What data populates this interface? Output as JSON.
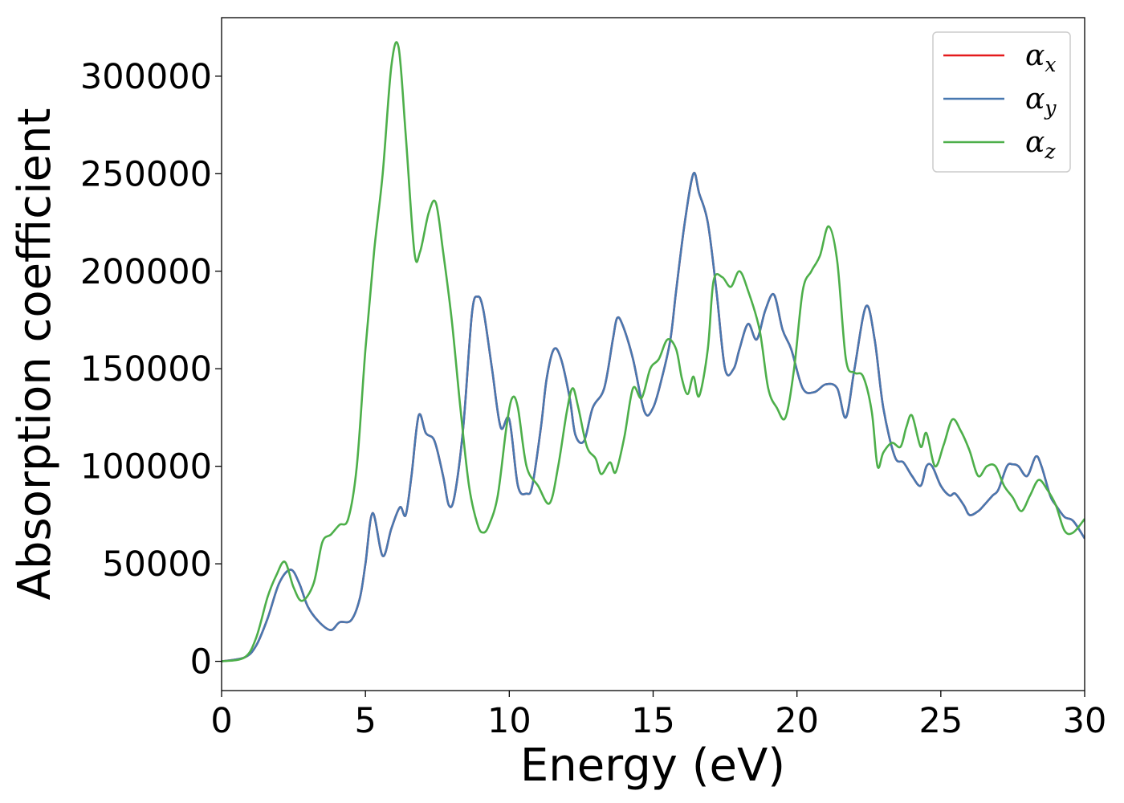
{
  "chart_data": {
    "type": "line",
    "xlabel": "Energy (eV)",
    "ylabel": "Absorption coefficient",
    "xlim": [
      0,
      30
    ],
    "ylim": [
      -15000,
      330000
    ],
    "xticks": [
      0,
      5,
      10,
      15,
      20,
      25,
      30
    ],
    "xtick_labels": [
      "0",
      "5",
      "10",
      "15",
      "20",
      "25",
      "30"
    ],
    "yticks": [
      0,
      50000,
      100000,
      150000,
      200000,
      250000,
      300000
    ],
    "ytick_labels": [
      "0",
      "50000",
      "100000",
      "150000",
      "200000",
      "250000",
      "300000"
    ],
    "grid": false,
    "legend_position": "top-right",
    "series": [
      {
        "name": "α",
        "subscript": "x",
        "color": "#e41a1c",
        "x": [
          0,
          0.8,
          1.2,
          1.6,
          2.0,
          2.4,
          2.7,
          3.0,
          3.4,
          3.8,
          4.1,
          4.5,
          4.8,
          5.0,
          5.25,
          5.6,
          5.9,
          6.2,
          6.4,
          6.6,
          6.85,
          7.1,
          7.4,
          7.7,
          7.9,
          8.1,
          8.4,
          8.7,
          8.9,
          9.1,
          9.4,
          9.7,
          10.0,
          10.3,
          10.6,
          10.8,
          11.1,
          11.3,
          11.55,
          11.8,
          12.1,
          12.3,
          12.6,
          12.9,
          13.3,
          13.6,
          13.75,
          13.95,
          14.3,
          14.7,
          15.0,
          15.3,
          15.6,
          15.8,
          16.1,
          16.4,
          16.6,
          16.9,
          17.2,
          17.5,
          17.8,
          18.0,
          18.3,
          18.6,
          18.9,
          19.2,
          19.5,
          19.8,
          20.2,
          20.6,
          21.0,
          21.4,
          21.7,
          22.0,
          22.4,
          22.7,
          23.0,
          23.4,
          23.7,
          24.0,
          24.3,
          24.5,
          24.7,
          25.0,
          25.3,
          25.5,
          25.8,
          26.0,
          26.3,
          26.5,
          26.8,
          27.0,
          27.3,
          27.5,
          27.7,
          28.0,
          28.3,
          28.5,
          28.8,
          29.0,
          29.3,
          29.6,
          30.0
        ],
        "y": [
          0,
          2000,
          8000,
          22000,
          40000,
          47000,
          40000,
          28000,
          20000,
          16000,
          20000,
          21000,
          32000,
          50000,
          76000,
          54000,
          68000,
          79000,
          75000,
          95000,
          126000,
          117000,
          113000,
          95000,
          80000,
          85000,
          120000,
          178000,
          187000,
          180000,
          150000,
          120000,
          124000,
          90000,
          86000,
          90000,
          120000,
          145000,
          160000,
          155000,
          135000,
          116000,
          113000,
          130000,
          140000,
          165000,
          176000,
          172000,
          155000,
          128000,
          130000,
          145000,
          165000,
          190000,
          225000,
          250000,
          240000,
          225000,
          190000,
          150000,
          150000,
          160000,
          173000,
          165000,
          180000,
          188000,
          170000,
          160000,
          140000,
          138000,
          142000,
          140000,
          125000,
          150000,
          182000,
          165000,
          130000,
          105000,
          102000,
          95000,
          90000,
          100000,
          100000,
          90000,
          85000,
          86000,
          80000,
          75000,
          77000,
          80000,
          85000,
          88000,
          100000,
          101000,
          100000,
          95000,
          105000,
          100000,
          85000,
          80000,
          74000,
          72000,
          63000
        ]
      },
      {
        "name": "α",
        "subscript": "y",
        "color": "#4878b0",
        "x": [
          0,
          0.8,
          1.2,
          1.6,
          2.0,
          2.4,
          2.7,
          3.0,
          3.4,
          3.8,
          4.1,
          4.5,
          4.8,
          5.0,
          5.25,
          5.6,
          5.9,
          6.2,
          6.4,
          6.6,
          6.85,
          7.1,
          7.4,
          7.7,
          7.9,
          8.1,
          8.4,
          8.7,
          8.9,
          9.1,
          9.4,
          9.7,
          10.0,
          10.3,
          10.6,
          10.8,
          11.1,
          11.3,
          11.55,
          11.8,
          12.1,
          12.3,
          12.6,
          12.9,
          13.3,
          13.6,
          13.75,
          13.95,
          14.3,
          14.7,
          15.0,
          15.3,
          15.6,
          15.8,
          16.1,
          16.4,
          16.6,
          16.9,
          17.2,
          17.5,
          17.8,
          18.0,
          18.3,
          18.6,
          18.9,
          19.2,
          19.5,
          19.8,
          20.2,
          20.6,
          21.0,
          21.4,
          21.7,
          22.0,
          22.4,
          22.7,
          23.0,
          23.4,
          23.7,
          24.0,
          24.3,
          24.5,
          24.7,
          25.0,
          25.3,
          25.5,
          25.8,
          26.0,
          26.3,
          26.5,
          26.8,
          27.0,
          27.3,
          27.5,
          27.7,
          28.0,
          28.3,
          28.5,
          28.8,
          29.0,
          29.3,
          29.6,
          30.0
        ],
        "y": [
          0,
          2000,
          8000,
          22000,
          40000,
          47000,
          40000,
          28000,
          20000,
          16000,
          20000,
          21000,
          32000,
          50000,
          76000,
          54000,
          68000,
          79000,
          75000,
          95000,
          126000,
          117000,
          113000,
          95000,
          80000,
          85000,
          120000,
          178000,
          187000,
          180000,
          150000,
          120000,
          124000,
          90000,
          86000,
          90000,
          120000,
          145000,
          160000,
          155000,
          135000,
          116000,
          113000,
          130000,
          140000,
          165000,
          176000,
          172000,
          155000,
          128000,
          130000,
          145000,
          165000,
          190000,
          225000,
          250000,
          240000,
          225000,
          190000,
          150000,
          150000,
          160000,
          173000,
          165000,
          180000,
          188000,
          170000,
          160000,
          140000,
          138000,
          142000,
          140000,
          125000,
          150000,
          182000,
          165000,
          130000,
          105000,
          102000,
          95000,
          90000,
          100000,
          100000,
          90000,
          85000,
          86000,
          80000,
          75000,
          77000,
          80000,
          85000,
          88000,
          100000,
          101000,
          100000,
          95000,
          105000,
          100000,
          85000,
          80000,
          74000,
          72000,
          63000
        ]
      },
      {
        "name": "α",
        "subscript": "z",
        "color": "#4daf4a",
        "x": [
          0,
          0.8,
          1.2,
          1.6,
          1.9,
          2.2,
          2.5,
          2.8,
          3.2,
          3.5,
          3.8,
          4.1,
          4.4,
          4.7,
          5.0,
          5.3,
          5.6,
          5.9,
          6.15,
          6.4,
          6.7,
          6.9,
          7.2,
          7.45,
          7.7,
          8.0,
          8.3,
          8.6,
          8.9,
          9.1,
          9.3,
          9.6,
          9.9,
          10.1,
          10.3,
          10.6,
          11.0,
          11.4,
          11.7,
          12.0,
          12.2,
          12.4,
          12.7,
          13.0,
          13.2,
          13.5,
          13.7,
          14.0,
          14.3,
          14.6,
          14.9,
          15.2,
          15.5,
          15.8,
          16.0,
          16.2,
          16.4,
          16.6,
          16.9,
          17.1,
          17.4,
          17.7,
          18.0,
          18.3,
          18.7,
          19.0,
          19.3,
          19.6,
          19.9,
          20.2,
          20.5,
          20.8,
          21.1,
          21.4,
          21.7,
          22.0,
          22.3,
          22.6,
          22.8,
          23.0,
          23.3,
          23.6,
          23.8,
          24.0,
          24.3,
          24.5,
          24.8,
          25.1,
          25.4,
          25.7,
          26.0,
          26.3,
          26.6,
          26.9,
          27.2,
          27.5,
          27.8,
          28.1,
          28.4,
          28.7,
          29.0,
          29.3,
          29.6,
          30.0
        ],
        "y": [
          0,
          2000,
          12000,
          33000,
          44000,
          51000,
          38000,
          31000,
          40000,
          61000,
          65000,
          70000,
          73000,
          100000,
          160000,
          210000,
          250000,
          305000,
          315000,
          270000,
          210000,
          210000,
          230000,
          235000,
          210000,
          175000,
          130000,
          90000,
          70000,
          66000,
          70000,
          85000,
          120000,
          135000,
          130000,
          100000,
          90000,
          81000,
          100000,
          128000,
          140000,
          130000,
          110000,
          104000,
          96000,
          102000,
          97000,
          115000,
          140000,
          135000,
          150000,
          155000,
          165000,
          160000,
          145000,
          137000,
          146000,
          136000,
          160000,
          195000,
          197000,
          192000,
          200000,
          190000,
          170000,
          140000,
          130000,
          125000,
          150000,
          190000,
          200000,
          208000,
          223000,
          205000,
          155000,
          148000,
          146000,
          128000,
          100000,
          107000,
          112000,
          110000,
          120000,
          126000,
          110000,
          117000,
          100000,
          111000,
          124000,
          118000,
          108000,
          95000,
          100000,
          100000,
          90000,
          84000,
          77000,
          85000,
          93000,
          88000,
          80000,
          67000,
          66000,
          73000
        ]
      }
    ]
  }
}
